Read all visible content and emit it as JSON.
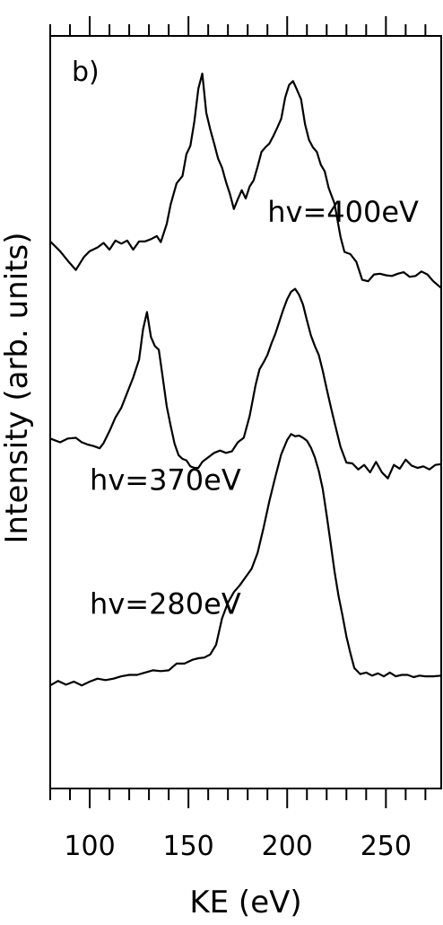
{
  "chart_data": {
    "type": "line",
    "title": "",
    "panel_label": "b)",
    "xlabel": "KE (eV)",
    "ylabel": "Intensity (arb. units)",
    "xlim": [
      80,
      278
    ],
    "x_ticks": [
      100,
      150,
      200,
      250
    ],
    "x_tick_labels": [
      "100",
      "150",
      "200",
      "250"
    ],
    "minor_tick_step": 10,
    "y_ticks": false,
    "grid": false,
    "legend": "none",
    "ylim": [
      0,
      1
    ],
    "series": [
      {
        "name": "hv=400eV",
        "points": [
          [
            80,
            0.727
          ],
          [
            85,
            0.714
          ],
          [
            89,
            0.701
          ],
          [
            93,
            0.689
          ],
          [
            97,
            0.706
          ],
          [
            100,
            0.714
          ],
          [
            104,
            0.719
          ],
          [
            107,
            0.725
          ],
          [
            110,
            0.716
          ],
          [
            113,
            0.728
          ],
          [
            116,
            0.724
          ],
          [
            119,
            0.728
          ],
          [
            122,
            0.716
          ],
          [
            125,
            0.727
          ],
          [
            128,
            0.727
          ],
          [
            131,
            0.73
          ],
          [
            134,
            0.734
          ],
          [
            136,
            0.726
          ],
          [
            139,
            0.75
          ],
          [
            141,
            0.776
          ],
          [
            144,
            0.804
          ],
          [
            147,
            0.814
          ],
          [
            149,
            0.843
          ],
          [
            151,
            0.854
          ],
          [
            153,
            0.886
          ],
          [
            155,
            0.93
          ],
          [
            157,
            0.95
          ],
          [
            159,
            0.898
          ],
          [
            161,
            0.876
          ],
          [
            163,
            0.857
          ],
          [
            165,
            0.837
          ],
          [
            167,
            0.825
          ],
          [
            169,
            0.806
          ],
          [
            171,
            0.79
          ],
          [
            173,
            0.77
          ],
          [
            175,
            0.783
          ],
          [
            177,
            0.795
          ],
          [
            179,
            0.784
          ],
          [
            181,
            0.8
          ],
          [
            183,
            0.808
          ],
          [
            185,
            0.826
          ],
          [
            187,
            0.846
          ],
          [
            189,
            0.852
          ],
          [
            191,
            0.857
          ],
          [
            193,
            0.867
          ],
          [
            195,
            0.878
          ],
          [
            197,
            0.89
          ],
          [
            199,
            0.918
          ],
          [
            201,
            0.935
          ],
          [
            203,
            0.94
          ],
          [
            205,
            0.928
          ],
          [
            207,
            0.916
          ],
          [
            209,
            0.883
          ],
          [
            211,
            0.862
          ],
          [
            213,
            0.852
          ],
          [
            215,
            0.846
          ],
          [
            217,
            0.829
          ],
          [
            219,
            0.82
          ],
          [
            221,
            0.798
          ],
          [
            224,
            0.777
          ],
          [
            227,
            0.733
          ],
          [
            229,
            0.713
          ],
          [
            232,
            0.71
          ],
          [
            235,
            0.7
          ],
          [
            238,
            0.676
          ],
          [
            241,
            0.674
          ],
          [
            244,
            0.683
          ],
          [
            247,
            0.684
          ],
          [
            250,
            0.682
          ],
          [
            253,
            0.681
          ],
          [
            256,
            0.684
          ],
          [
            259,
            0.686
          ],
          [
            262,
            0.68
          ],
          [
            265,
            0.681
          ],
          [
            268,
            0.687
          ],
          [
            271,
            0.683
          ],
          [
            274,
            0.674
          ],
          [
            278,
            0.665
          ]
        ],
        "label_at": [
          190,
          0.753
        ]
      },
      {
        "name": "hv=370eV",
        "points": [
          [
            80,
            0.465
          ],
          [
            85,
            0.46
          ],
          [
            89,
            0.465
          ],
          [
            93,
            0.466
          ],
          [
            96,
            0.46
          ],
          [
            99,
            0.457
          ],
          [
            102,
            0.455
          ],
          [
            105,
            0.452
          ],
          [
            107,
            0.459
          ],
          [
            110,
            0.475
          ],
          [
            113,
            0.493
          ],
          [
            116,
            0.506
          ],
          [
            119,
            0.526
          ],
          [
            122,
            0.546
          ],
          [
            125,
            0.57
          ],
          [
            127,
            0.61
          ],
          [
            129,
            0.633
          ],
          [
            131,
            0.6
          ],
          [
            133,
            0.588
          ],
          [
            135,
            0.583
          ],
          [
            137,
            0.546
          ],
          [
            139,
            0.508
          ],
          [
            141,
            0.482
          ],
          [
            143,
            0.458
          ],
          [
            145,
            0.443
          ],
          [
            147,
            0.438
          ],
          [
            149,
            0.436
          ],
          [
            151,
            0.428
          ],
          [
            153,
            0.426
          ],
          [
            155,
            0.426
          ],
          [
            157,
            0.434
          ],
          [
            160,
            0.44
          ],
          [
            163,
            0.446
          ],
          [
            166,
            0.449
          ],
          [
            169,
            0.446
          ],
          [
            172,
            0.448
          ],
          [
            175,
            0.46
          ],
          [
            178,
            0.466
          ],
          [
            181,
            0.495
          ],
          [
            184,
            0.536
          ],
          [
            186,
            0.557
          ],
          [
            188,
            0.566
          ],
          [
            190,
            0.576
          ],
          [
            192,
            0.591
          ],
          [
            194,
            0.604
          ],
          [
            196,
            0.62
          ],
          [
            198,
            0.636
          ],
          [
            200,
            0.65
          ],
          [
            202,
            0.66
          ],
          [
            204,
            0.664
          ],
          [
            206,
            0.656
          ],
          [
            208,
            0.643
          ],
          [
            210,
            0.622
          ],
          [
            212,
            0.602
          ],
          [
            214,
            0.588
          ],
          [
            216,
            0.576
          ],
          [
            218,
            0.555
          ],
          [
            220,
            0.531
          ],
          [
            222,
            0.508
          ],
          [
            224,
            0.486
          ],
          [
            227,
            0.454
          ],
          [
            230,
            0.433
          ],
          [
            233,
            0.432
          ],
          [
            236,
            0.424
          ],
          [
            239,
            0.43
          ],
          [
            242,
            0.42
          ],
          [
            245,
            0.434
          ],
          [
            248,
            0.42
          ],
          [
            251,
            0.412
          ],
          [
            254,
            0.43
          ],
          [
            257,
            0.425
          ],
          [
            260,
            0.437
          ],
          [
            263,
            0.429
          ],
          [
            266,
            0.426
          ],
          [
            269,
            0.428
          ],
          [
            272,
            0.424
          ],
          [
            275,
            0.43
          ],
          [
            278,
            0.431
          ]
        ],
        "label_at": [
          100,
          0.397
        ]
      },
      {
        "name": "hv=280eV",
        "points": [
          [
            80,
            0.137
          ],
          [
            84,
            0.143
          ],
          [
            88,
            0.138
          ],
          [
            92,
            0.142
          ],
          [
            96,
            0.137
          ],
          [
            100,
            0.142
          ],
          [
            104,
            0.146
          ],
          [
            108,
            0.144
          ],
          [
            112,
            0.146
          ],
          [
            116,
            0.149
          ],
          [
            120,
            0.151
          ],
          [
            124,
            0.151
          ],
          [
            128,
            0.154
          ],
          [
            132,
            0.157
          ],
          [
            136,
            0.156
          ],
          [
            140,
            0.157
          ],
          [
            144,
            0.166
          ],
          [
            148,
            0.166
          ],
          [
            152,
            0.171
          ],
          [
            155,
            0.173
          ],
          [
            158,
            0.174
          ],
          [
            161,
            0.178
          ],
          [
            164,
            0.191
          ],
          [
            167,
            0.226
          ],
          [
            170,
            0.247
          ],
          [
            173,
            0.261
          ],
          [
            176,
            0.27
          ],
          [
            179,
            0.281
          ],
          [
            182,
            0.292
          ],
          [
            185,
            0.313
          ],
          [
            188,
            0.346
          ],
          [
            191,
            0.382
          ],
          [
            194,
            0.414
          ],
          [
            197,
            0.444
          ],
          [
            200,
            0.463
          ],
          [
            202,
            0.471
          ],
          [
            204,
            0.468
          ],
          [
            206,
            0.469
          ],
          [
            208,
            0.466
          ],
          [
            210,
            0.462
          ],
          [
            212,
            0.453
          ],
          [
            214,
            0.44
          ],
          [
            216,
            0.422
          ],
          [
            218,
            0.398
          ],
          [
            220,
            0.363
          ],
          [
            222,
            0.326
          ],
          [
            224,
            0.288
          ],
          [
            226,
            0.256
          ],
          [
            228,
            0.23
          ],
          [
            230,
            0.202
          ],
          [
            232,
            0.18
          ],
          [
            234,
            0.16
          ],
          [
            237,
            0.152
          ],
          [
            240,
            0.154
          ],
          [
            243,
            0.15
          ],
          [
            246,
            0.153
          ],
          [
            249,
            0.149
          ],
          [
            252,
            0.154
          ],
          [
            255,
            0.149
          ],
          [
            258,
            0.151
          ],
          [
            261,
            0.151
          ],
          [
            264,
            0.148
          ],
          [
            267,
            0.15
          ],
          [
            270,
            0.149
          ],
          [
            274,
            0.149
          ],
          [
            278,
            0.15
          ]
        ],
        "label_at": [
          100,
          0.232
        ]
      }
    ]
  }
}
